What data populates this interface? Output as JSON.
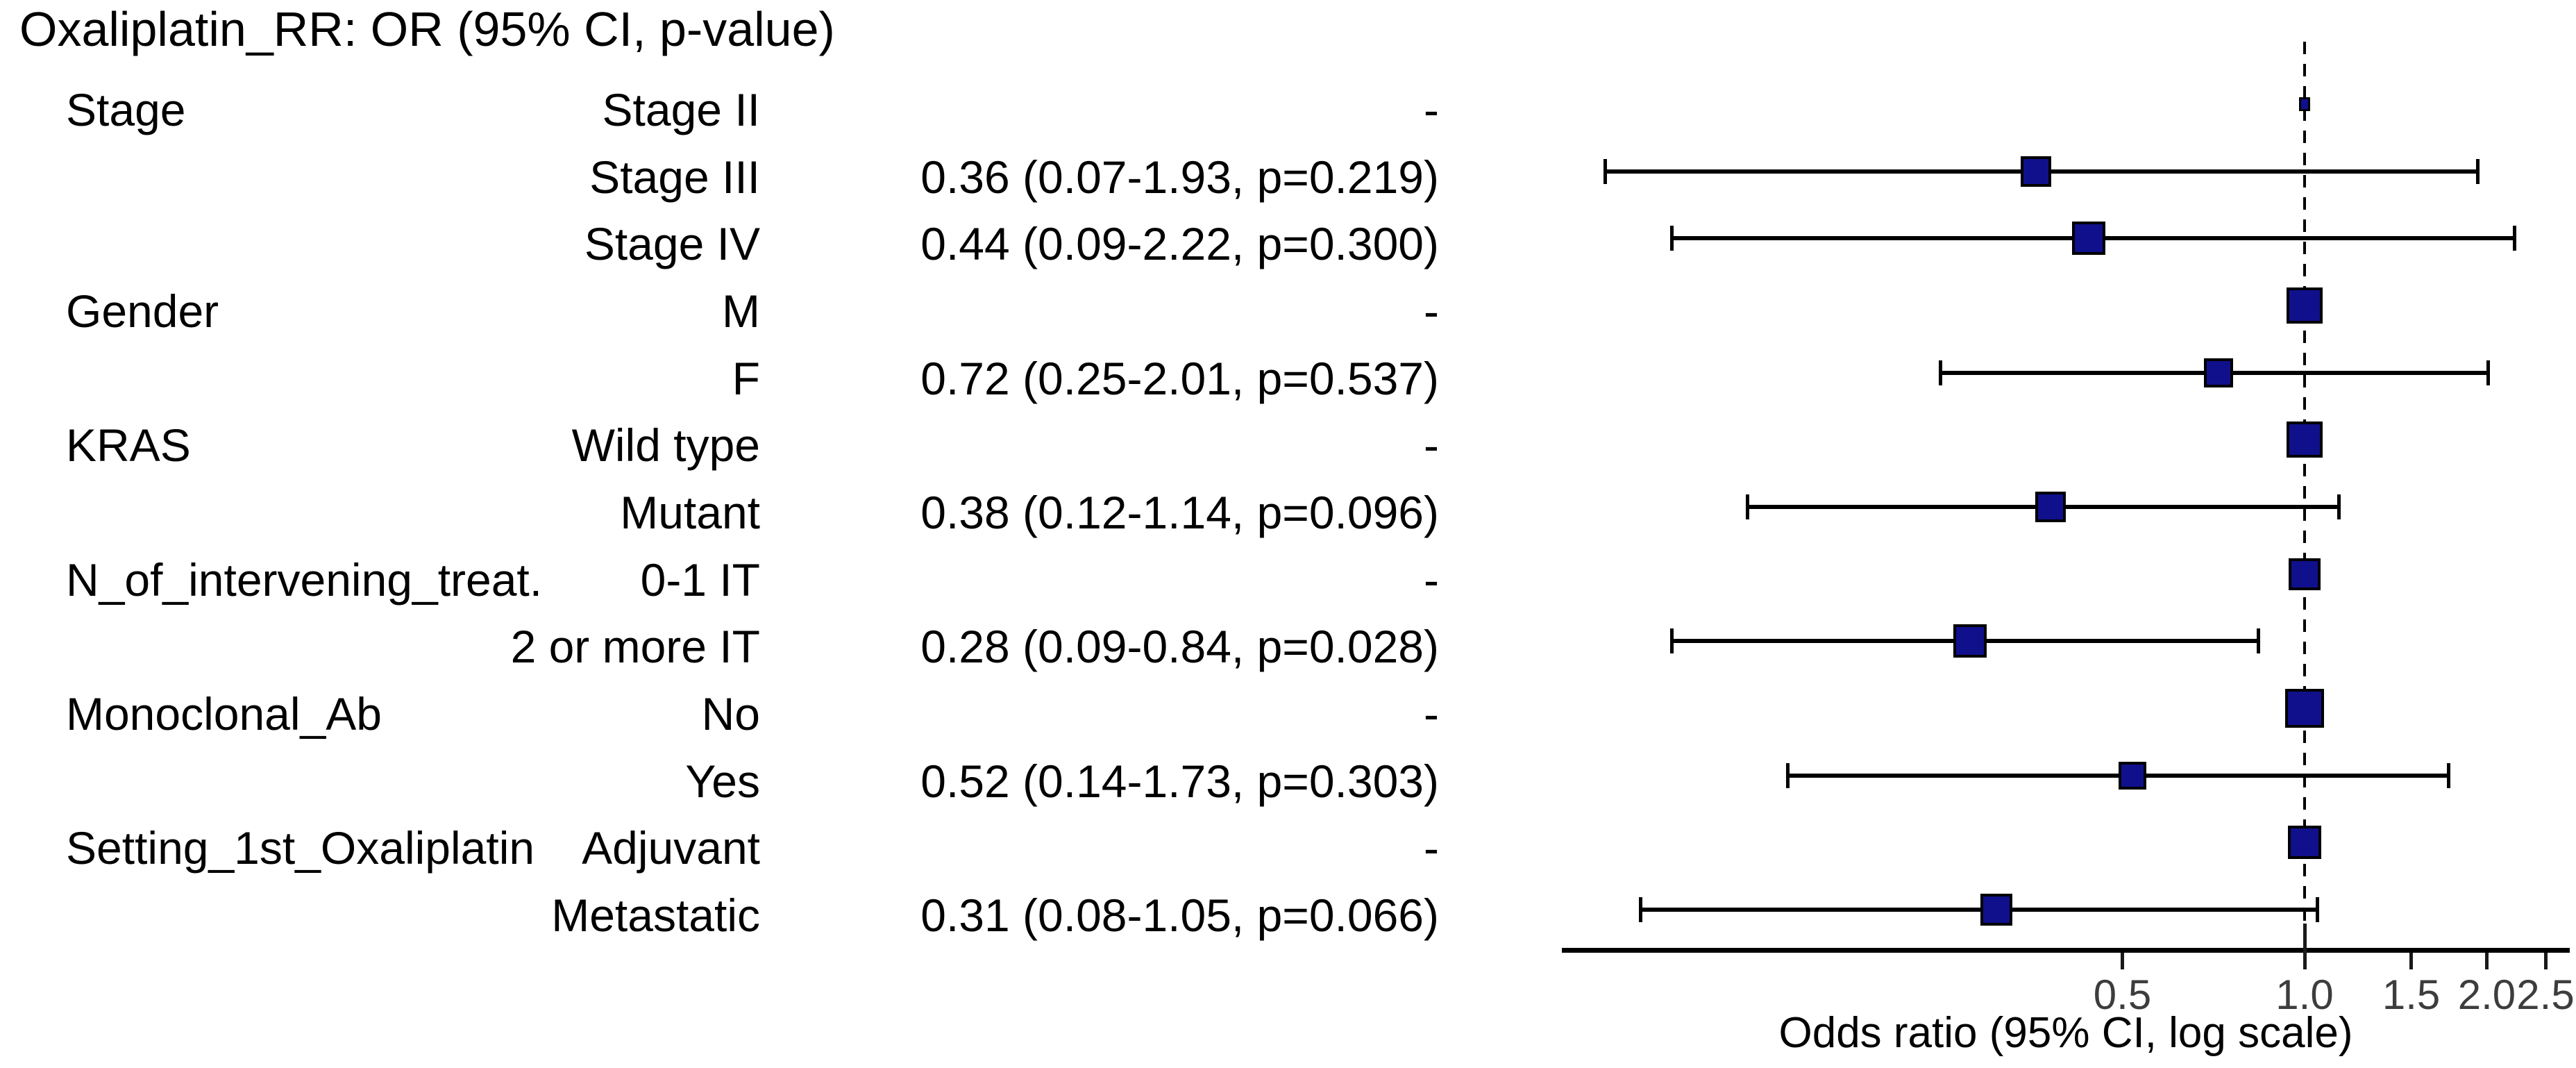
{
  "title": "Oxaliplatin_RR: OR (95% CI, p-value)",
  "style": {
    "marker_color": "#10108C",
    "line_color": "#000000",
    "tick_text_color": "#3d3d3d"
  },
  "chart_data": {
    "type": "forest",
    "title": "Oxaliplatin_RR: OR (95% CI, p-value)",
    "xlabel": "Odds ratio (95% CI, log scale)",
    "x_scale": "log",
    "x_ticks": [
      0.5,
      1.0,
      1.5,
      2.0,
      2.5
    ],
    "x_tick_labels": [
      "0.5",
      "1.0",
      "1.5",
      "2.0",
      "2.5"
    ],
    "x_range": [
      0.057,
      2.75
    ],
    "reference_line": 1.0,
    "rows": [
      {
        "group": "Stage",
        "level": "Stage II",
        "value_text": "-",
        "or": 1.0,
        "ci_low": null,
        "ci_high": null,
        "reference": true,
        "box": 16
      },
      {
        "group": "",
        "level": "Stage III",
        "value_text": "0.36 (0.07-1.93, p=0.219)",
        "or": 0.36,
        "ci_low": 0.07,
        "ci_high": 1.93,
        "reference": false,
        "box": 44
      },
      {
        "group": "",
        "level": "Stage IV",
        "value_text": "0.44 (0.09-2.22, p=0.300)",
        "or": 0.44,
        "ci_low": 0.09,
        "ci_high": 2.22,
        "reference": false,
        "box": 48
      },
      {
        "group": "Gender",
        "level": "M",
        "value_text": "-",
        "or": 1.0,
        "ci_low": null,
        "ci_high": null,
        "reference": true,
        "box": 52
      },
      {
        "group": "",
        "level": "F",
        "value_text": "0.72 (0.25-2.01, p=0.537)",
        "or": 0.72,
        "ci_low": 0.25,
        "ci_high": 2.01,
        "reference": false,
        "box": 42
      },
      {
        "group": "KRAS",
        "level": "Wild type",
        "value_text": "-",
        "or": 1.0,
        "ci_low": null,
        "ci_high": null,
        "reference": true,
        "box": 52
      },
      {
        "group": "",
        "level": "Mutant",
        "value_text": "0.38 (0.12-1.14, p=0.096)",
        "or": 0.38,
        "ci_low": 0.12,
        "ci_high": 1.14,
        "reference": false,
        "box": 44
      },
      {
        "group": "N_of_intervening_treat.",
        "level": "0-1 IT",
        "value_text": "-",
        "or": 1.0,
        "ci_low": null,
        "ci_high": null,
        "reference": true,
        "box": 46
      },
      {
        "group": "",
        "level": "2 or more IT",
        "value_text": "0.28 (0.09-0.84, p=0.028)",
        "or": 0.28,
        "ci_low": 0.09,
        "ci_high": 0.84,
        "reference": false,
        "box": 48
      },
      {
        "group": "Monoclonal_Ab",
        "level": "No",
        "value_text": "-",
        "or": 1.0,
        "ci_low": null,
        "ci_high": null,
        "reference": true,
        "box": 56
      },
      {
        "group": "",
        "level": "Yes",
        "value_text": "0.52 (0.14-1.73, p=0.303)",
        "or": 0.52,
        "ci_low": 0.14,
        "ci_high": 1.73,
        "reference": false,
        "box": 40
      },
      {
        "group": "Setting_1st_Oxaliplatin",
        "level": "Adjuvant",
        "value_text": "-",
        "or": 1.0,
        "ci_low": null,
        "ci_high": null,
        "reference": true,
        "box": 48
      },
      {
        "group": "",
        "level": "Metastatic",
        "value_text": "0.31 (0.08-1.05, p=0.066)",
        "or": 0.31,
        "ci_low": 0.08,
        "ci_high": 1.05,
        "reference": false,
        "box": 46
      }
    ]
  }
}
